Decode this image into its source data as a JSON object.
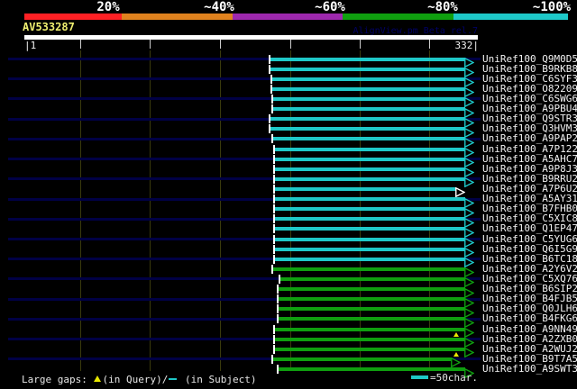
{
  "query": {
    "name": "AV533287",
    "credit": "AlignView.pm Beta rel.7",
    "start_label": "|1",
    "end_label": "332|"
  },
  "legend": {
    "prefix": "Large gaps: ",
    "mid": "(in Query)/",
    "suffix": " (in Subject)",
    "scale_text": "=50char."
  },
  "palette": {
    "background": "#000000",
    "query_bar": "#ffffff",
    "query_name": "#f0f070",
    "credit": "#000066",
    "row_guide_navy": "#000045",
    "grid_olive": "#3a3a0c",
    "label_text": "#f2f2f2",
    "gap_marker_yellow": "#e8e800",
    "white_arrow": "#ffffff"
  },
  "chart_data": {
    "type": "bar",
    "subtype": "blast-alignment-spans",
    "title": "AV533287",
    "x_axis": {
      "min": 1,
      "max": 332,
      "unit": "char",
      "gridline_interval_chars": 50,
      "grid": true
    },
    "legend_position": "top",
    "identity_scale": [
      {
        "label": "20%",
        "color": "#ff2024"
      },
      {
        "label": "~40%",
        "color": "#e0821e"
      },
      {
        "label": "~60%",
        "color": "#9e28ae"
      },
      {
        "label": "~80%",
        "color": "#0f9f0f"
      },
      {
        "label": "~100%",
        "color": "#1ec8c8"
      }
    ],
    "rows": [
      {
        "label": "UniRef100_Q9M0D5",
        "identity": "~100%",
        "start": 180,
        "end": 323,
        "guide": true
      },
      {
        "label": "UniRef100_B9RKB8",
        "identity": "~100%",
        "start": 180,
        "end": 323,
        "guide": false
      },
      {
        "label": "UniRef100_C6SYF3",
        "identity": "~100%",
        "start": 181,
        "end": 323,
        "guide": true
      },
      {
        "label": "UniRef100_O82209",
        "identity": "~100%",
        "start": 181,
        "end": 323,
        "guide": false
      },
      {
        "label": "UniRef100_C6SWG6",
        "identity": "~100%",
        "start": 182,
        "end": 323,
        "guide": true
      },
      {
        "label": "UniRef100_A9PBU4",
        "identity": "~100%",
        "start": 182,
        "end": 323,
        "guide": false
      },
      {
        "label": "UniRef100_Q9STR3",
        "identity": "~100%",
        "start": 180,
        "end": 323,
        "guide": true
      },
      {
        "label": "UniRef100_Q3HVM3",
        "identity": "~100%",
        "start": 180,
        "end": 323,
        "guide": false
      },
      {
        "label": "UniRef100_A9PAP2",
        "identity": "~100%",
        "start": 182,
        "end": 323,
        "guide": true
      },
      {
        "label": "UniRef100_A7P122",
        "identity": "~100%",
        "start": 183,
        "end": 323,
        "guide": false
      },
      {
        "label": "UniRef100_A5AHC7",
        "identity": "~100%",
        "start": 183,
        "end": 323,
        "guide": true
      },
      {
        "label": "UniRef100_A9P8J3",
        "identity": "~100%",
        "start": 183,
        "end": 323,
        "guide": false
      },
      {
        "label": "UniRef100_B9RRU2",
        "identity": "~100%",
        "start": 183,
        "end": 323,
        "guide": true
      },
      {
        "label": "UniRef100_A7P6U2",
        "identity": "~100%",
        "start": 183,
        "end": 316,
        "guide": false,
        "arrow_color": "#ffffff"
      },
      {
        "label": "UniRef100_A5AY31",
        "identity": "~100%",
        "start": 183,
        "end": 323,
        "guide": true
      },
      {
        "label": "UniRef100_B7FHB0",
        "identity": "~100%",
        "start": 183,
        "end": 323,
        "guide": false
      },
      {
        "label": "UniRef100_C5XIC8",
        "identity": "~100%",
        "start": 183,
        "end": 323,
        "guide": true
      },
      {
        "label": "UniRef100_Q1EP47",
        "identity": "~100%",
        "start": 183,
        "end": 323,
        "guide": false
      },
      {
        "label": "UniRef100_C5YUG6",
        "identity": "~100%",
        "start": 183,
        "end": 323,
        "guide": true
      },
      {
        "label": "UniRef100_Q6I5G9",
        "identity": "~100%",
        "start": 183,
        "end": 323,
        "guide": false
      },
      {
        "label": "UniRef100_B6TC18",
        "identity": "~100%",
        "start": 183,
        "end": 323,
        "guide": true
      },
      {
        "label": "UniRef100_A2Y6V2",
        "identity": "~80%",
        "start": 182,
        "end": 323,
        "guide": false
      },
      {
        "label": "UniRef100_C5XQ76",
        "identity": "~80%",
        "start": 187,
        "end": 323,
        "guide": true
      },
      {
        "label": "UniRef100_B6SIP2",
        "identity": "~80%",
        "start": 186,
        "end": 323,
        "guide": false
      },
      {
        "label": "UniRef100_B4FJB5",
        "identity": "~80%",
        "start": 186,
        "end": 323,
        "guide": true
      },
      {
        "label": "UniRef100_Q0JLH6",
        "identity": "~80%",
        "start": 186,
        "end": 323,
        "guide": false
      },
      {
        "label": "UniRef100_B4FKG6",
        "identity": "~80%",
        "start": 186,
        "end": 323,
        "guide": true
      },
      {
        "label": "UniRef100_A9NN49",
        "identity": "~80%",
        "start": 183,
        "end": 323,
        "guide": false
      },
      {
        "label": "UniRef100_A2ZXB0",
        "identity": "~80%",
        "start": 183,
        "end": 323,
        "guide": true,
        "query_gaps": [
          316
        ]
      },
      {
        "label": "UniRef100_A2WUJ2",
        "identity": "~80%",
        "start": 183,
        "end": 323,
        "guide": false
      },
      {
        "label": "UniRef100_B9T7A5",
        "identity": "~80%",
        "start": 182,
        "end": 313,
        "guide": true,
        "query_gaps": [
          316
        ]
      },
      {
        "label": "UniRef100_A9SWT3",
        "identity": "~80%",
        "start": 186,
        "end": 323,
        "guide": false
      }
    ]
  }
}
